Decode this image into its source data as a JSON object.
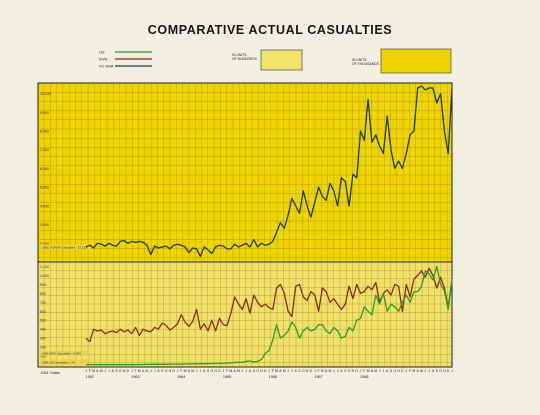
{
  "title": "COMPARATIVE ACTUAL CASUALTIES",
  "legend": {
    "items": [
      {
        "label": "US",
        "color": "#2e9a2e"
      },
      {
        "label": "RVN",
        "color": "#8e2a12"
      },
      {
        "label": "VC NVA",
        "color": "#1f3b37"
      }
    ],
    "hundreds_label": [
      "IN UNITS",
      "OF HUNDREDS"
    ],
    "thousands_label": [
      "IN UNITS",
      "OF THOUSANDS"
    ]
  },
  "colors": {
    "upper_panel": "#efd400",
    "lower_panel": "#f1e16a",
    "legend_swatch_hundreds": "#f1e46c",
    "legend_swatch_thousands": "#efd400",
    "grid": "#7a6a00"
  },
  "chart_data": {
    "type": "line",
    "title": "COMPARATIVE ACTUAL CASUALTIES",
    "xlabel": "",
    "ylabel": "",
    "x_label_1961": "1961 Totals",
    "years": [
      "1962",
      "1963",
      "1964",
      "1965",
      "1966",
      "1967",
      "1968"
    ],
    "month_letters": [
      "J",
      "F",
      "M",
      "A",
      "M",
      "J",
      "J",
      "A",
      "S",
      "O",
      "N",
      "D"
    ],
    "months_range": "Jan 1962 – Jul 1968",
    "upper_axis": {
      "unit": "thousands",
      "ticks": [
        2000,
        3000,
        4000,
        5000,
        6000,
        7000,
        8000,
        9000,
        10000
      ],
      "ylim": [
        1000,
        10000
      ]
    },
    "lower_axis": {
      "unit": "hundreds",
      "ticks": [
        100,
        200,
        300,
        400,
        500,
        600,
        700,
        800,
        900,
        1000,
        1100
      ],
      "ylim": [
        0,
        1150
      ]
    },
    "annotations": [
      "1961 VC/NVA Casualties - 12,133",
      "1961 RVN Casualties - 4,004",
      "1961 US Casualties - 14"
    ],
    "series": [
      {
        "name": "VC NVA",
        "axis": "upper",
        "values": [
          1800,
          1900,
          1750,
          2000,
          1950,
          1850,
          2000,
          1900,
          1850,
          2100,
          2150,
          2000,
          2100,
          2050,
          2100,
          2050,
          1900,
          1400,
          1850,
          1750,
          1800,
          1850,
          1700,
          1900,
          1950,
          1900,
          1800,
          1500,
          1750,
          1700,
          1300,
          1800,
          1650,
          1450,
          1800,
          1900,
          1850,
          1700,
          1700,
          1950,
          1800,
          1900,
          2000,
          1800,
          2200,
          1800,
          2000,
          1900,
          1950,
          2100,
          2600,
          3100,
          2800,
          3500,
          4400,
          4000,
          3600,
          4800,
          4000,
          3400,
          4200,
          5000,
          4500,
          4300,
          5200,
          4800,
          4000,
          5500,
          5300,
          4000,
          5700,
          5500,
          8000,
          7500,
          9700,
          7400,
          7800,
          7200,
          6800,
          8800,
          7000,
          6000,
          6400,
          6000,
          6800,
          7800,
          8000,
          10300,
          10400,
          10200,
          10300,
          10300,
          9500,
          10000,
          8000,
          6800,
          10300
        ]
      },
      {
        "name": "RVN",
        "axis": "lower",
        "values": [
          300,
          260,
          400,
          380,
          390,
          350,
          370,
          380,
          360,
          400,
          370,
          390,
          350,
          420,
          330,
          400,
          380,
          370,
          420,
          400,
          470,
          440,
          390,
          420,
          460,
          560,
          480,
          430,
          490,
          620,
          400,
          460,
          380,
          500,
          380,
          520,
          450,
          440,
          580,
          760,
          680,
          620,
          740,
          580,
          780,
          700,
          650,
          680,
          640,
          620,
          860,
          900,
          800,
          600,
          540,
          880,
          900,
          760,
          720,
          820,
          780,
          600,
          860,
          820,
          700,
          740,
          680,
          620,
          680,
          880,
          740,
          900,
          800,
          820,
          880,
          840,
          920,
          700,
          800,
          840,
          780,
          900,
          880,
          600,
          900,
          760,
          960,
          1000,
          1050,
          980,
          1080,
          1000,
          860,
          980,
          860,
          650,
          940
        ]
      },
      {
        "name": "US",
        "axis": "lower",
        "values": [
          5,
          5,
          5,
          5,
          5,
          5,
          5,
          5,
          5,
          5,
          5,
          5,
          5,
          5,
          6,
          6,
          7,
          7,
          8,
          8,
          8,
          9,
          9,
          10,
          10,
          10,
          11,
          12,
          12,
          13,
          14,
          15,
          16,
          17,
          18,
          18,
          20,
          22,
          25,
          28,
          30,
          32,
          40,
          45,
          35,
          40,
          60,
          130,
          160,
          280,
          450,
          300,
          330,
          380,
          480,
          420,
          300,
          380,
          420,
          380,
          400,
          450,
          450,
          380,
          350,
          420,
          380,
          300,
          320,
          420,
          380,
          500,
          520,
          650,
          600,
          560,
          780,
          680,
          800,
          600,
          680,
          650,
          600,
          700,
          780,
          700,
          820,
          820,
          880,
          1050,
          1020,
          950,
          1100,
          900,
          830,
          620,
          960
        ]
      }
    ]
  }
}
